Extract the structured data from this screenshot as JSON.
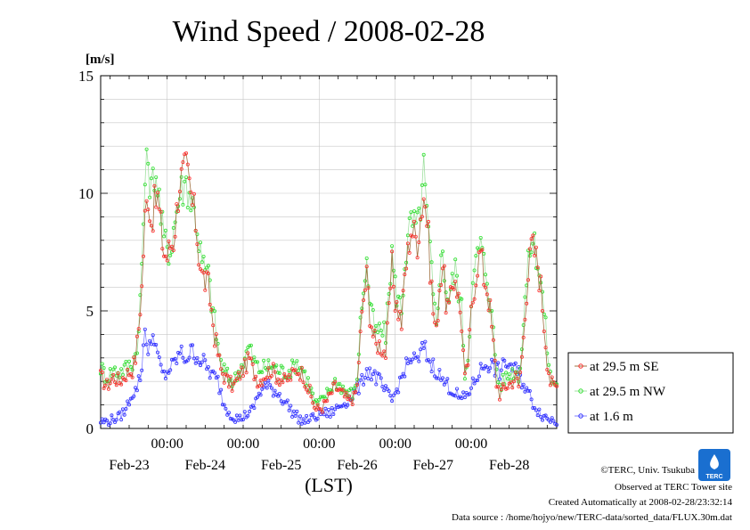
{
  "chart_data": {
    "type": "line",
    "title": "Wind Speed / 2008-02-28",
    "unit_label": "[m/s]",
    "xlabel": "(LST)",
    "ylim": [
      0,
      15
    ],
    "y_ticks": [
      "0",
      "5",
      "10",
      "15"
    ],
    "y_tick_values": [
      0,
      5,
      10,
      15
    ],
    "x_range_hours": [
      0,
      144
    ],
    "x_time_ticks": [
      {
        "label": "00:00",
        "hour": 21
      },
      {
        "label": "00:00",
        "hour": 45
      },
      {
        "label": "00:00",
        "hour": 69
      },
      {
        "label": "00:00",
        "hour": 93
      },
      {
        "label": "00:00",
        "hour": 117
      }
    ],
    "x_date_labels": [
      {
        "label": "Feb-23",
        "hour": 9
      },
      {
        "label": "Feb-24",
        "hour": 33
      },
      {
        "label": "Feb-25",
        "hour": 57
      },
      {
        "label": "Feb-26",
        "hour": 81
      },
      {
        "label": "Feb-27",
        "hour": 105
      },
      {
        "label": "Feb-28",
        "hour": 129
      }
    ],
    "grid": true,
    "legend_position": "right",
    "series": [
      {
        "name": "at 29.5 m SE",
        "color": "#ff3030",
        "line_color": "#a07040",
        "keyframes": [
          [
            0,
            2.2
          ],
          [
            2,
            1.8
          ],
          [
            4,
            2.2
          ],
          [
            6,
            2.0
          ],
          [
            8,
            2.3
          ],
          [
            10,
            2.5
          ],
          [
            11,
            3.0
          ],
          [
            12,
            4.3
          ],
          [
            13,
            6.0
          ],
          [
            14,
            9.0
          ],
          [
            15,
            10.0
          ],
          [
            16,
            8.8
          ],
          [
            17,
            9.5
          ],
          [
            18,
            9.8
          ],
          [
            19,
            8.5
          ],
          [
            20,
            7.5
          ],
          [
            21,
            7.3
          ],
          [
            22,
            7.8
          ],
          [
            23,
            8.0
          ],
          [
            25,
            10.5
          ],
          [
            27,
            11.0
          ],
          [
            29,
            9.5
          ],
          [
            30,
            8.8
          ],
          [
            31,
            7.5
          ],
          [
            32,
            6.5
          ],
          [
            34,
            6.0
          ],
          [
            35,
            5.0
          ],
          [
            36,
            4.0
          ],
          [
            37,
            3.2
          ],
          [
            38,
            2.5
          ],
          [
            40,
            2.0
          ],
          [
            42,
            1.8
          ],
          [
            44,
            2.3
          ],
          [
            46,
            2.7
          ],
          [
            47,
            3.0
          ],
          [
            48,
            2.5
          ],
          [
            50,
            2.0
          ],
          [
            52,
            2.3
          ],
          [
            54,
            2.5
          ],
          [
            56,
            2.2
          ],
          [
            58,
            2.0
          ],
          [
            60,
            2.2
          ],
          [
            62,
            2.5
          ],
          [
            64,
            2.3
          ],
          [
            66,
            1.5
          ],
          [
            68,
            0.8
          ],
          [
            70,
            0.9
          ],
          [
            72,
            1.3
          ],
          [
            74,
            1.8
          ],
          [
            76,
            1.5
          ],
          [
            78,
            1.2
          ],
          [
            80,
            1.3
          ],
          [
            81,
            1.8
          ],
          [
            82,
            4.0
          ],
          [
            83,
            5.5
          ],
          [
            84,
            6.5
          ],
          [
            85,
            5.0
          ],
          [
            86,
            4.0
          ],
          [
            87,
            3.5
          ],
          [
            88,
            3.6
          ],
          [
            90,
            3.2
          ],
          [
            91,
            5.0
          ],
          [
            92,
            7.0
          ],
          [
            93,
            5.5
          ],
          [
            95,
            4.5
          ],
          [
            96,
            6.5
          ],
          [
            97,
            7.5
          ],
          [
            98,
            8.5
          ],
          [
            100,
            8.0
          ],
          [
            101,
            9.0
          ],
          [
            102,
            10.0
          ],
          [
            103,
            9.0
          ],
          [
            104,
            7.0
          ],
          [
            105,
            5.0
          ],
          [
            106,
            4.0
          ],
          [
            107,
            6.0
          ],
          [
            108,
            7.0
          ],
          [
            109,
            5.5
          ],
          [
            110,
            5.0
          ],
          [
            111,
            6.0
          ],
          [
            112,
            6.5
          ],
          [
            113,
            5.5
          ],
          [
            114,
            4.5
          ],
          [
            115,
            2.0
          ],
          [
            116,
            2.8
          ],
          [
            117,
            5.0
          ],
          [
            118,
            6.0
          ],
          [
            119,
            7.0
          ],
          [
            120,
            7.5
          ],
          [
            121,
            6.5
          ],
          [
            122,
            6.0
          ],
          [
            123,
            5.0
          ],
          [
            124,
            3.5
          ],
          [
            125,
            2.0
          ],
          [
            126,
            1.5
          ],
          [
            128,
            1.8
          ],
          [
            130,
            2.0
          ],
          [
            131,
            2.2
          ],
          [
            132,
            1.8
          ],
          [
            133,
            3.0
          ],
          [
            134,
            5.0
          ],
          [
            135,
            6.5
          ],
          [
            136,
            7.8
          ],
          [
            137,
            7.5
          ],
          [
            138,
            7.0
          ],
          [
            139,
            6.0
          ],
          [
            140,
            4.5
          ],
          [
            141,
            3.0
          ],
          [
            142,
            2.0
          ],
          [
            143,
            1.8
          ],
          [
            144,
            1.8
          ]
        ]
      },
      {
        "name": "at 29.5 m NW",
        "color": "#30e030",
        "line_color": "#a0e0a0",
        "keyframes": [
          [
            0,
            2.6
          ],
          [
            2,
            2.2
          ],
          [
            4,
            2.5
          ],
          [
            6,
            2.4
          ],
          [
            8,
            2.6
          ],
          [
            10,
            2.8
          ],
          [
            11,
            3.2
          ],
          [
            12,
            4.0
          ],
          [
            13,
            7.0
          ],
          [
            14,
            10.5
          ],
          [
            15,
            11.5
          ],
          [
            16,
            10.0
          ],
          [
            17,
            11.0
          ],
          [
            18,
            10.5
          ],
          [
            19,
            9.0
          ],
          [
            20,
            8.0
          ],
          [
            21,
            7.8
          ],
          [
            22,
            7.5
          ],
          [
            23,
            8.5
          ],
          [
            25,
            10.0
          ],
          [
            27,
            10.5
          ],
          [
            29,
            9.5
          ],
          [
            30,
            9.0
          ],
          [
            31,
            8.0
          ],
          [
            32,
            7.0
          ],
          [
            34,
            6.5
          ],
          [
            35,
            5.5
          ],
          [
            36,
            4.5
          ],
          [
            37,
            3.5
          ],
          [
            38,
            2.8
          ],
          [
            40,
            2.2
          ],
          [
            42,
            2.0
          ],
          [
            44,
            2.5
          ],
          [
            46,
            3.2
          ],
          [
            47,
            3.5
          ],
          [
            48,
            3.0
          ],
          [
            50,
            2.5
          ],
          [
            52,
            2.6
          ],
          [
            54,
            2.7
          ],
          [
            56,
            2.5
          ],
          [
            58,
            2.4
          ],
          [
            60,
            2.5
          ],
          [
            62,
            2.8
          ],
          [
            64,
            2.5
          ],
          [
            66,
            1.8
          ],
          [
            68,
            1.0
          ],
          [
            70,
            1.2
          ],
          [
            72,
            1.6
          ],
          [
            74,
            2.0
          ],
          [
            76,
            1.8
          ],
          [
            78,
            1.5
          ],
          [
            80,
            1.5
          ],
          [
            81,
            2.2
          ],
          [
            82,
            4.5
          ],
          [
            83,
            6.0
          ],
          [
            84,
            7.0
          ],
          [
            85,
            5.5
          ],
          [
            86,
            4.5
          ],
          [
            87,
            4.0
          ],
          [
            88,
            4.2
          ],
          [
            90,
            4.0
          ],
          [
            91,
            5.8
          ],
          [
            92,
            7.5
          ],
          [
            93,
            6.0
          ],
          [
            95,
            5.0
          ],
          [
            96,
            7.0
          ],
          [
            97,
            8.0
          ],
          [
            98,
            8.8
          ],
          [
            100,
            8.5
          ],
          [
            101,
            9.5
          ],
          [
            102,
            11.0
          ],
          [
            103,
            9.0
          ],
          [
            104,
            7.5
          ],
          [
            105,
            5.5
          ],
          [
            106,
            4.5
          ],
          [
            107,
            6.5
          ],
          [
            108,
            7.5
          ],
          [
            109,
            6.0
          ],
          [
            110,
            5.5
          ],
          [
            111,
            6.2
          ],
          [
            112,
            6.8
          ],
          [
            113,
            6.0
          ],
          [
            114,
            5.0
          ],
          [
            115,
            2.5
          ],
          [
            116,
            3.0
          ],
          [
            117,
            5.5
          ],
          [
            118,
            6.5
          ],
          [
            119,
            7.5
          ],
          [
            120,
            7.8
          ],
          [
            121,
            7.0
          ],
          [
            122,
            6.5
          ],
          [
            123,
            5.5
          ],
          [
            124,
            4.0
          ],
          [
            125,
            2.5
          ],
          [
            126,
            1.8
          ],
          [
            128,
            2.2
          ],
          [
            130,
            2.4
          ],
          [
            131,
            2.5
          ],
          [
            132,
            2.2
          ],
          [
            133,
            3.5
          ],
          [
            134,
            5.5
          ],
          [
            135,
            7.0
          ],
          [
            136,
            8.0
          ],
          [
            137,
            7.8
          ],
          [
            138,
            7.2
          ],
          [
            139,
            6.2
          ],
          [
            140,
            5.0
          ],
          [
            141,
            3.5
          ],
          [
            142,
            2.2
          ],
          [
            143,
            1.9
          ],
          [
            144,
            2.0
          ]
        ]
      },
      {
        "name": "at 1.6 m",
        "color": "#3030ff",
        "line_color": "#8080ff",
        "keyframes": [
          [
            0,
            0.3
          ],
          [
            2,
            0.3
          ],
          [
            4,
            0.4
          ],
          [
            6,
            0.5
          ],
          [
            8,
            0.8
          ],
          [
            9,
            1.2
          ],
          [
            10,
            1.5
          ],
          [
            11,
            1.6
          ],
          [
            12,
            2.0
          ],
          [
            13,
            2.5
          ],
          [
            14,
            4.5
          ],
          [
            15,
            3.0
          ],
          [
            16,
            3.8
          ],
          [
            17,
            4.0
          ],
          [
            18,
            3.0
          ],
          [
            19,
            2.5
          ],
          [
            20,
            2.2
          ],
          [
            21,
            2.4
          ],
          [
            23,
            2.7
          ],
          [
            25,
            3.2
          ],
          [
            27,
            3.0
          ],
          [
            29,
            3.3
          ],
          [
            31,
            3.0
          ],
          [
            33,
            2.7
          ],
          [
            35,
            2.3
          ],
          [
            37,
            2.0
          ],
          [
            38,
            1.5
          ],
          [
            39,
            1.0
          ],
          [
            40,
            0.8
          ],
          [
            42,
            0.5
          ],
          [
            44,
            0.4
          ],
          [
            46,
            0.6
          ],
          [
            48,
            0.8
          ],
          [
            50,
            1.5
          ],
          [
            52,
            1.8
          ],
          [
            54,
            1.7
          ],
          [
            56,
            1.5
          ],
          [
            58,
            1.2
          ],
          [
            60,
            0.8
          ],
          [
            62,
            0.5
          ],
          [
            64,
            0.3
          ],
          [
            66,
            0.4
          ],
          [
            68,
            0.5
          ],
          [
            70,
            0.7
          ],
          [
            72,
            0.6
          ],
          [
            74,
            0.8
          ],
          [
            76,
            1.0
          ],
          [
            78,
            1.2
          ],
          [
            80,
            1.5
          ],
          [
            82,
            1.8
          ],
          [
            84,
            2.5
          ],
          [
            86,
            2.3
          ],
          [
            88,
            2.0
          ],
          [
            90,
            1.5
          ],
          [
            92,
            1.2
          ],
          [
            94,
            1.8
          ],
          [
            96,
            2.5
          ],
          [
            98,
            3.0
          ],
          [
            100,
            2.8
          ],
          [
            102,
            3.5
          ],
          [
            104,
            2.8
          ],
          [
            106,
            2.5
          ],
          [
            108,
            2.0
          ],
          [
            110,
            1.8
          ],
          [
            112,
            1.5
          ],
          [
            114,
            1.2
          ],
          [
            116,
            1.5
          ],
          [
            118,
            2.0
          ],
          [
            120,
            2.5
          ],
          [
            122,
            2.8
          ],
          [
            124,
            2.6
          ],
          [
            126,
            2.4
          ],
          [
            128,
            2.8
          ],
          [
            130,
            2.6
          ],
          [
            132,
            2.3
          ],
          [
            134,
            1.8
          ],
          [
            136,
            1.2
          ],
          [
            138,
            0.8
          ],
          [
            140,
            0.5
          ],
          [
            142,
            0.4
          ],
          [
            144,
            0.3
          ]
        ]
      }
    ]
  },
  "legend_box": {
    "visible": true
  },
  "logo": {
    "text": "TERC"
  },
  "footer": {
    "copyright": "©TERC, Univ. Tsukuba",
    "observed": "Observed at TERC Tower site",
    "created": "Created Automatically at 2008-02-28/23:32:14",
    "source": "Data source : /home/hojyo/new/TERC-data/sorted_data/FLUX.30m.dat"
  }
}
